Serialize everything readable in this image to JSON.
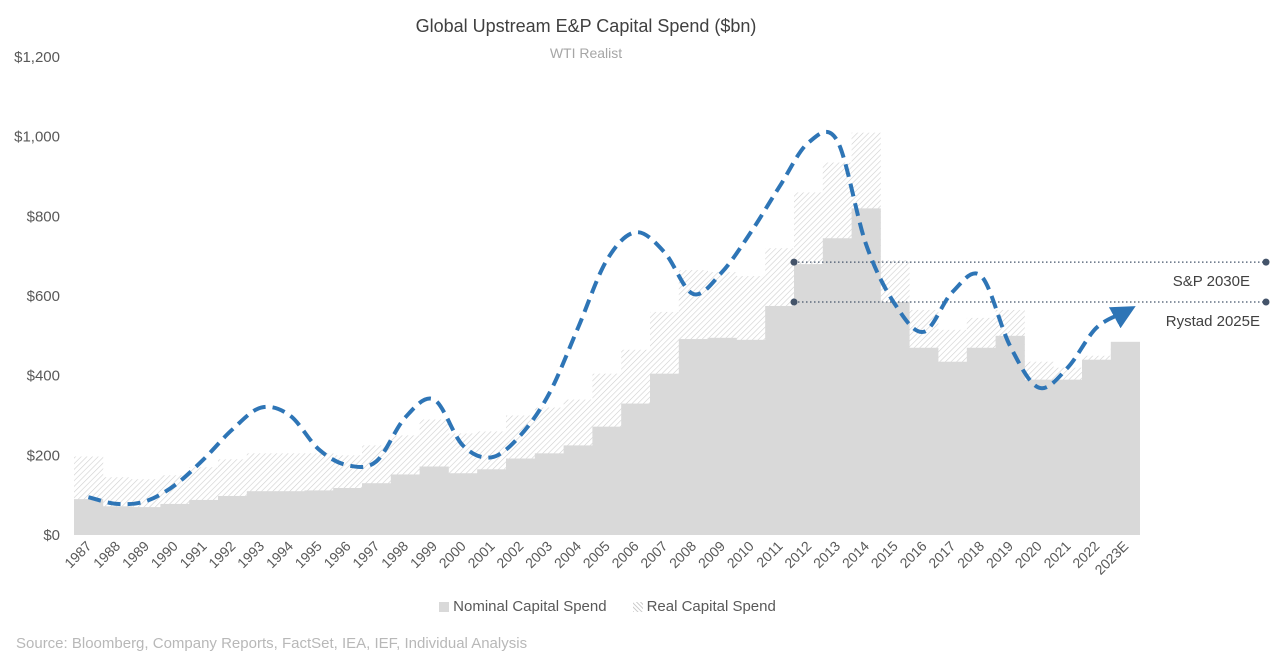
{
  "title": "Global Upstream E&P Capital Spend ($bn)",
  "subtitle": "WTI Realist",
  "source": "Source: Bloomberg, Company Reports, FactSet, IEA, IEF, Individual Analysis",
  "chart_data": {
    "type": "area",
    "title": "Global Upstream E&P Capital Spend ($bn)",
    "subtitle": "WTI Realist",
    "categories": [
      "1987",
      "1988",
      "1989",
      "1990",
      "1991",
      "1992",
      "1993",
      "1994",
      "1995",
      "1996",
      "1997",
      "1998",
      "1999",
      "2000",
      "2001",
      "2002",
      "2003",
      "2004",
      "2005",
      "2006",
      "2007",
      "2008",
      "2009",
      "2010",
      "2011",
      "2012",
      "2013",
      "2014",
      "2015",
      "2016",
      "2017",
      "2018",
      "2019",
      "2020",
      "2021",
      "2022",
      "2023E"
    ],
    "ylim": [
      0,
      1200
    ],
    "yticks": [
      0,
      200,
      400,
      600,
      800,
      1000,
      1200
    ],
    "ytick_labels": [
      "$0",
      "$200",
      "$400",
      "$600",
      "$800",
      "$1,000",
      "$1,200"
    ],
    "series": [
      {
        "name": "Nominal Capital Spend",
        "style": "step-area-solid",
        "color": "#d9d9d9",
        "values": [
          90,
          72,
          70,
          78,
          88,
          98,
          110,
          110,
          112,
          118,
          130,
          152,
          172,
          155,
          165,
          192,
          205,
          225,
          272,
          330,
          405,
          492,
          495,
          490,
          575,
          680,
          745,
          820,
          585,
          470,
          435,
          470,
          500,
          390,
          390,
          440,
          485
        ]
      },
      {
        "name": "Real Capital Spend",
        "style": "step-area-hatched",
        "color": "#cfcfcf",
        "values": [
          197,
          145,
          140,
          150,
          170,
          190,
          205,
          205,
          205,
          200,
          225,
          250,
          290,
          255,
          260,
          300,
          320,
          340,
          405,
          465,
          560,
          665,
          660,
          650,
          720,
          860,
          935,
          1010,
          690,
          565,
          515,
          545,
          565,
          435,
          420,
          450,
          475
        ]
      },
      {
        "name": "Capital Spend Trend",
        "style": "dashed-curve",
        "color": "#2e75b6",
        "values": [
          95,
          78,
          85,
          125,
          190,
          265,
          320,
          300,
          215,
          175,
          185,
          295,
          340,
          225,
          195,
          250,
          355,
          520,
          690,
          760,
          710,
          605,
          660,
          760,
          875,
          985,
          990,
          730,
          580,
          510,
          610,
          650,
          475,
          370,
          420,
          520,
          560
        ]
      }
    ],
    "reference_lines": [
      {
        "label": "S&P 2030E",
        "value": 685
      },
      {
        "label": "Rystad 2025E",
        "value": 585
      }
    ],
    "grid": false,
    "legend_position": "bottom"
  }
}
